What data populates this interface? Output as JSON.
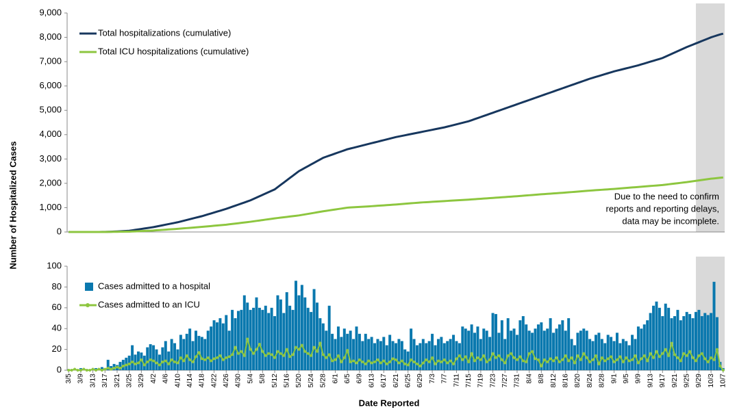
{
  "chart_data": [
    {
      "type": "line",
      "y_label": "Number of Hospitalized Cases",
      "ylim": [
        0,
        9000
      ],
      "yticks": [
        0,
        {
          "value": 1000,
          "label": "1,000"
        },
        {
          "value": 2000,
          "label": "2,000"
        },
        {
          "value": 3000,
          "label": "3,000"
        },
        {
          "value": 4000,
          "label": "4,000"
        },
        {
          "value": 5000,
          "label": "5,000"
        },
        {
          "value": 6000,
          "label": "6,000"
        },
        {
          "value": 7000,
          "label": "7,000"
        },
        {
          "value": 8000,
          "label": "8,000"
        },
        {
          "value": 9000,
          "label": "9,000"
        }
      ],
      "grid": false,
      "legend": "upper left",
      "annotation": [
        "Due to the need to confirm",
        "reports and reporting delays,",
        "data may be incomplete."
      ],
      "series": [
        {
          "name": "Total hospitalizations (cumulative)",
          "color": "#17375e",
          "values": [
            0,
            0,
            0,
            0,
            0,
            0,
            0,
            0,
            0,
            0,
            1,
            2,
            4,
            8,
            12,
            17,
            22,
            28,
            35,
            42,
            50,
            69,
            88,
            106,
            125,
            144,
            162,
            181,
            200,
            225,
            250,
            275,
            300,
            325,
            350,
            375,
            400,
            431,
            462,
            494,
            525,
            556,
            588,
            619,
            650,
            688,
            725,
            762,
            800,
            838,
            875,
            912,
            950,
            994,
            1038,
            1081,
            1125,
            1169,
            1212,
            1256,
            1300,
            1356,
            1412,
            1469,
            1525,
            1581,
            1638,
            1694,
            1750,
            1844,
            1938,
            2031,
            2125,
            2219,
            2312,
            2406,
            2500,
            2569,
            2638,
            2706,
            2775,
            2844,
            2912,
            2981,
            3050,
            3094,
            3138,
            3181,
            3225,
            3269,
            3312,
            3356,
            3400,
            3431,
            3462,
            3494,
            3525,
            3556,
            3588,
            3619,
            3650,
            3681,
            3712,
            3744,
            3775,
            3806,
            3838,
            3869,
            3900,
            3925,
            3950,
            3975,
            4000,
            4025,
            4050,
            4075,
            4100,
            4125,
            4150,
            4175,
            4200,
            4225,
            4250,
            4275,
            4300,
            4331,
            4362,
            4394,
            4425,
            4456,
            4488,
            4519,
            4550,
            4594,
            4638,
            4681,
            4725,
            4769,
            4812,
            4856,
            4900,
            4944,
            4988,
            5031,
            5075,
            5119,
            5162,
            5206,
            5250,
            5294,
            5338,
            5381,
            5425,
            5469,
            5512,
            5556,
            5600,
            5644,
            5688,
            5731,
            5775,
            5819,
            5862,
            5906,
            5950,
            5994,
            6038,
            6081,
            6125,
            6169,
            6212,
            6256,
            6300,
            6338,
            6375,
            6412,
            6450,
            6488,
            6525,
            6562,
            6600,
            6631,
            6662,
            6694,
            6725,
            6756,
            6788,
            6819,
            6850,
            6888,
            6925,
            6962,
            7000,
            7038,
            7075,
            7112,
            7150,
            7206,
            7262,
            7319,
            7375,
            7431,
            7488,
            7544,
            7600,
            7650,
            7700,
            7750,
            7800,
            7850,
            7900,
            7950,
            8000,
            8040,
            8080,
            8120,
            8150
          ]
        },
        {
          "name": "Total ICU hospitalizations (cumulative)",
          "color": "#8dc63f",
          "values": [
            0,
            0,
            0,
            0,
            0,
            0,
            0,
            0,
            0,
            0,
            0,
            0,
            0,
            2,
            4,
            6,
            8,
            9,
            11,
            13,
            15,
            21,
            26,
            32,
            38,
            43,
            49,
            54,
            60,
            69,
            78,
            86,
            95,
            104,
            112,
            121,
            130,
            140,
            150,
            160,
            170,
            180,
            190,
            200,
            210,
            221,
            232,
            244,
            255,
            266,
            278,
            289,
            300,
            315,
            330,
            345,
            360,
            375,
            390,
            405,
            420,
            438,
            455,
            472,
            490,
            508,
            525,
            542,
            560,
            575,
            590,
            605,
            620,
            635,
            650,
            665,
            680,
            701,
            722,
            744,
            765,
            786,
            808,
            829,
            850,
            869,
            888,
            906,
            925,
            944,
            962,
            981,
            1000,
            1008,
            1015,
            1022,
            1030,
            1038,
            1045,
            1052,
            1060,
            1069,
            1078,
            1086,
            1095,
            1104,
            1112,
            1121,
            1130,
            1140,
            1150,
            1160,
            1170,
            1180,
            1190,
            1200,
            1210,
            1218,
            1225,
            1232,
            1240,
            1248,
            1255,
            1262,
            1270,
            1278,
            1285,
            1292,
            1300,
            1308,
            1315,
            1322,
            1330,
            1339,
            1348,
            1356,
            1365,
            1374,
            1382,
            1391,
            1400,
            1409,
            1418,
            1426,
            1435,
            1444,
            1452,
            1461,
            1470,
            1480,
            1490,
            1500,
            1510,
            1520,
            1530,
            1540,
            1550,
            1559,
            1568,
            1576,
            1585,
            1594,
            1602,
            1611,
            1620,
            1630,
            1640,
            1650,
            1660,
            1670,
            1680,
            1690,
            1700,
            1709,
            1718,
            1726,
            1735,
            1744,
            1752,
            1761,
            1770,
            1780,
            1790,
            1800,
            1810,
            1820,
            1830,
            1840,
            1850,
            1860,
            1870,
            1880,
            1890,
            1900,
            1910,
            1920,
            1930,
            1945,
            1960,
            1975,
            1990,
            2005,
            2020,
            2035,
            2050,
            2068,
            2085,
            2102,
            2120,
            2138,
            2155,
            2172,
            2190,
            2202,
            2215,
            2228,
            2240
          ]
        }
      ]
    },
    {
      "type": "bar",
      "x_label": "Date Reported",
      "ylim": [
        0,
        100
      ],
      "yticks": [
        0,
        20,
        40,
        60,
        80,
        100
      ],
      "grid": false,
      "legend": "upper left",
      "shaded_range": [
        "9/29",
        "10/7"
      ],
      "categories": [
        "3/5",
        null,
        null,
        null,
        "3/9",
        null,
        null,
        null,
        "3/13",
        null,
        null,
        null,
        "3/17",
        null,
        null,
        null,
        "3/21",
        null,
        null,
        null,
        "3/25",
        null,
        null,
        null,
        "3/29",
        null,
        null,
        null,
        "4/2",
        null,
        null,
        null,
        "4/6",
        null,
        null,
        null,
        "4/10",
        null,
        null,
        null,
        "4/14",
        null,
        null,
        null,
        "4/18",
        null,
        null,
        null,
        "4/22",
        null,
        null,
        null,
        "4/26",
        null,
        null,
        null,
        "4/30",
        null,
        null,
        null,
        "5/4",
        null,
        null,
        null,
        "5/8",
        null,
        null,
        null,
        "5/12",
        null,
        null,
        null,
        "5/16",
        null,
        null,
        null,
        "5/20",
        null,
        null,
        null,
        "5/24",
        null,
        null,
        null,
        "5/28",
        null,
        null,
        null,
        "6/1",
        null,
        null,
        null,
        "6/5",
        null,
        null,
        null,
        "6/9",
        null,
        null,
        null,
        "6/13",
        null,
        null,
        null,
        "6/17",
        null,
        null,
        null,
        "6/21",
        null,
        null,
        null,
        "6/25",
        null,
        null,
        null,
        "6/29",
        null,
        null,
        null,
        "7/3",
        null,
        null,
        null,
        "7/7",
        null,
        null,
        null,
        "7/11",
        null,
        null,
        null,
        "7/15",
        null,
        null,
        null,
        "7/19",
        null,
        null,
        null,
        "7/23",
        null,
        null,
        null,
        "7/27",
        null,
        null,
        null,
        "7/31",
        null,
        null,
        null,
        "8/4",
        null,
        null,
        null,
        "8/8",
        null,
        null,
        null,
        "8/12",
        null,
        null,
        null,
        "8/16",
        null,
        null,
        null,
        "8/20",
        null,
        null,
        null,
        "8/24",
        null,
        null,
        null,
        "8/28",
        null,
        null,
        null,
        "9/1",
        null,
        null,
        null,
        "9/5",
        null,
        null,
        null,
        "9/9",
        null,
        null,
        null,
        "9/13",
        null,
        null,
        null,
        "9/17",
        null,
        null,
        null,
        "9/21",
        null,
        null,
        null,
        "9/25",
        null,
        null,
        null,
        "9/29",
        null,
        null,
        null,
        "10/3",
        null,
        null,
        null,
        "10/7"
      ],
      "series": [
        {
          "name": "Cases admitted to a hospital",
          "color": "#0a78ae",
          "values": [
            1,
            0,
            1,
            0,
            2,
            0,
            1,
            0,
            1,
            2,
            0,
            3,
            2,
            10,
            4,
            6,
            5,
            8,
            10,
            12,
            14,
            24,
            15,
            18,
            17,
            14,
            22,
            25,
            24,
            20,
            15,
            22,
            28,
            18,
            30,
            26,
            20,
            34,
            30,
            35,
            40,
            28,
            38,
            33,
            32,
            30,
            38,
            42,
            48,
            46,
            50,
            45,
            53,
            38,
            58,
            50,
            57,
            58,
            72,
            65,
            58,
            60,
            70,
            60,
            58,
            62,
            55,
            60,
            52,
            72,
            68,
            55,
            75,
            62,
            58,
            86,
            72,
            82,
            70,
            60,
            56,
            78,
            65,
            50,
            45,
            38,
            62,
            35,
            30,
            42,
            32,
            40,
            35,
            38,
            30,
            42,
            35,
            28,
            35,
            30,
            32,
            26,
            30,
            28,
            32,
            24,
            34,
            28,
            26,
            30,
            28,
            20,
            18,
            40,
            30,
            24,
            26,
            30,
            26,
            28,
            35,
            24,
            30,
            32,
            26,
            28,
            30,
            34,
            28,
            26,
            42,
            40,
            38,
            44,
            36,
            42,
            30,
            40,
            38,
            32,
            55,
            54,
            36,
            48,
            30,
            50,
            38,
            40,
            34,
            48,
            52,
            44,
            38,
            36,
            40,
            44,
            46,
            38,
            40,
            50,
            36,
            40,
            44,
            48,
            38,
            50,
            30,
            24,
            36,
            38,
            40,
            38,
            30,
            28,
            34,
            36,
            30,
            26,
            34,
            32,
            28,
            36,
            26,
            30,
            28,
            24,
            34,
            30,
            42,
            40,
            44,
            48,
            55,
            62,
            66,
            60,
            52,
            64,
            60,
            50,
            52,
            58,
            48,
            52,
            56,
            54,
            50,
            56,
            58,
            52,
            55,
            53,
            55,
            85,
            51,
            8,
            2
          ]
        },
        {
          "name": "Cases admitted to an ICU",
          "color": "#8dc63f",
          "values": [
            0,
            0,
            1,
            0,
            0,
            1,
            0,
            0,
            1,
            0,
            1,
            0,
            1,
            2,
            1,
            2,
            3,
            2,
            4,
            5,
            6,
            8,
            6,
            7,
            10,
            5,
            8,
            10,
            9,
            7,
            5,
            8,
            9,
            6,
            10,
            8,
            7,
            12,
            9,
            14,
            10,
            8,
            13,
            17,
            11,
            10,
            12,
            9,
            11,
            12,
            14,
            10,
            12,
            13,
            15,
            22,
            16,
            18,
            14,
            30,
            20,
            16,
            20,
            25,
            18,
            14,
            16,
            15,
            12,
            18,
            16,
            14,
            20,
            13,
            15,
            22,
            20,
            24,
            18,
            16,
            14,
            22,
            18,
            26,
            15,
            12,
            15,
            9,
            10,
            14,
            8,
            12,
            19,
            8,
            9,
            7,
            10,
            8,
            6,
            9,
            7,
            8,
            10,
            7,
            9,
            6,
            8,
            11,
            10,
            7,
            9,
            6,
            5,
            10,
            8,
            6,
            4,
            7,
            10,
            8,
            12,
            6,
            9,
            8,
            10,
            7,
            9,
            6,
            11,
            14,
            10,
            13,
            8,
            16,
            9,
            12,
            10,
            14,
            8,
            10,
            16,
            12,
            14,
            10,
            7,
            14,
            16,
            12,
            10,
            13,
            9,
            8,
            16,
            18,
            11,
            10,
            4,
            10,
            8,
            11,
            9,
            12,
            8,
            10,
            14,
            9,
            12,
            7,
            14,
            10,
            16,
            12,
            8,
            10,
            14,
            6,
            12,
            9,
            11,
            13,
            8,
            10,
            13,
            8,
            12,
            9,
            10,
            14,
            7,
            11,
            14,
            9,
            16,
            12,
            18,
            13,
            16,
            20,
            14,
            26,
            15,
            12,
            9,
            16,
            14,
            18,
            12,
            9,
            14,
            16,
            11,
            8,
            12,
            10,
            20,
            4,
            0
          ]
        }
      ]
    }
  ]
}
